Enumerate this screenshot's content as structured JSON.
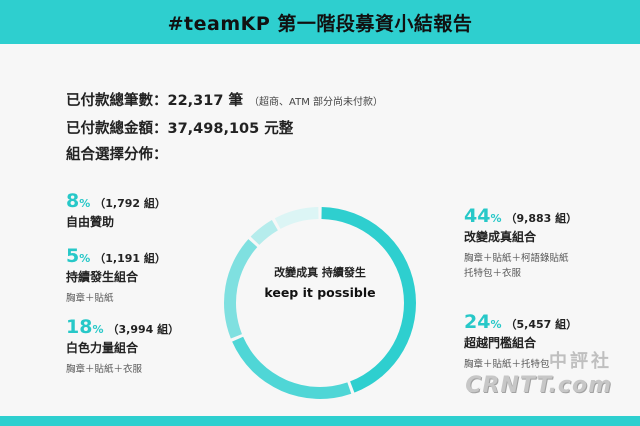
{
  "header": {
    "title": "#teamKP 第一階段募資小結報告"
  },
  "summary": {
    "paid_count_label": "已付款總筆數：22,317 筆",
    "paid_count_note": "（超商、ATM 部分尚未付款）",
    "paid_amount_label": "已付款總金額：37,498,105 元整",
    "distribution_label": "組合選擇分佈："
  },
  "chart_data": {
    "type": "pie",
    "center_text": [
      "改變成真 持續發生",
      "keep it possible"
    ],
    "categories": [
      "改變成真組合",
      "超越門檻組合",
      "白色力量組合",
      "持續發生組合",
      "自由贊助"
    ],
    "values": [
      44,
      24,
      18,
      5,
      8
    ],
    "counts": [
      "9,883 組",
      "5,457 組",
      "3,994 組",
      "1,191 組",
      "1,792 組"
    ],
    "colors": [
      "#2ecfcf",
      "#4fd6d6",
      "#7fe0e0",
      "#b5ecec",
      "#dcf5f5"
    ]
  },
  "items": {
    "free": {
      "pct": "8",
      "sign": "%",
      "count": "（1,792 組）",
      "name": "自由贊助",
      "desc": ""
    },
    "cont": {
      "pct": "5",
      "sign": "%",
      "count": "（1,191 組）",
      "name": "持續發生組合",
      "desc": "胸章＋貼紙"
    },
    "white": {
      "pct": "18",
      "sign": "%",
      "count": "（3,994 組）",
      "name": "白色力量組合",
      "desc": "胸章＋貼紙＋衣服"
    },
    "change": {
      "pct": "44",
      "sign": "%",
      "count": "（9,883 組）",
      "name": "改變成真組合",
      "desc1": "胸章＋貼紙＋柯語錄貼紙",
      "desc2": "托特包＋衣服"
    },
    "beyond": {
      "pct": "24",
      "sign": "%",
      "count": "（5,457 組）",
      "name": "超越門檻組合",
      "desc": "胸章＋貼紙＋托特包"
    }
  },
  "watermark": {
    "line1": "中評社",
    "line2": "CRNTT.com"
  }
}
